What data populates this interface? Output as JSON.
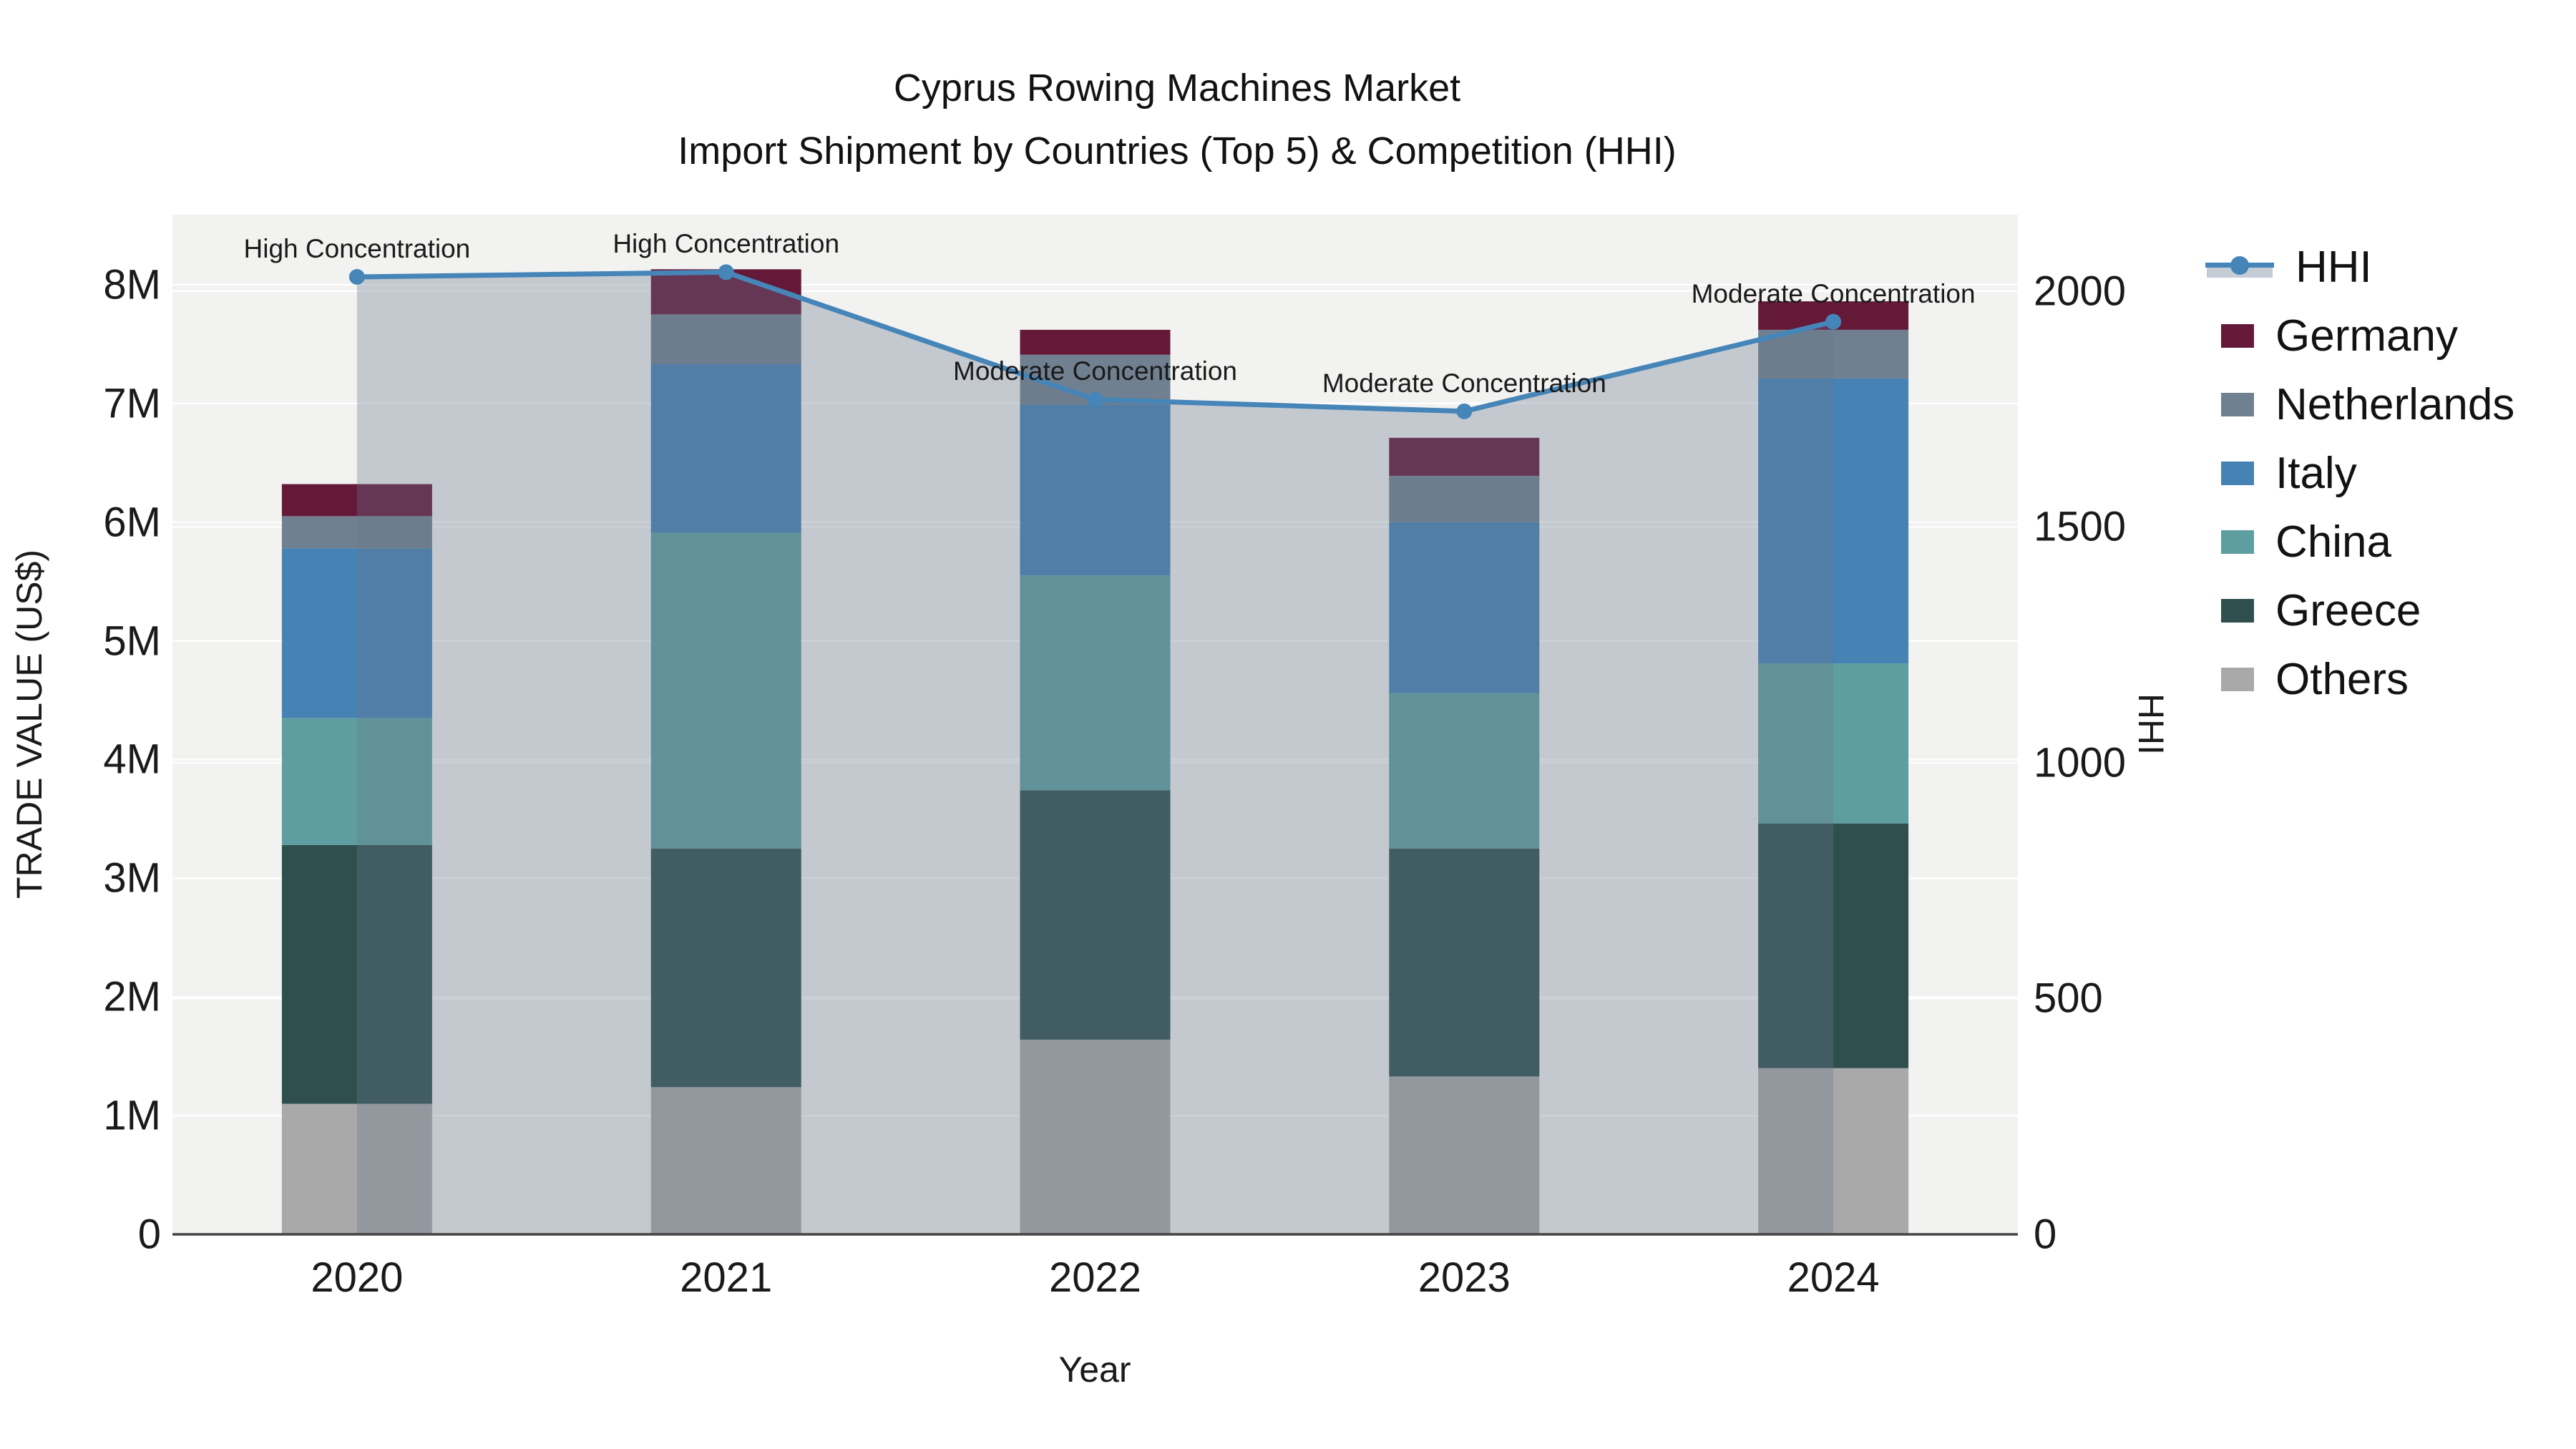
{
  "title": {
    "line1": "Cyprus Rowing Machines Market",
    "line2": "Import Shipment by Countries (Top 5) & Competition (HHI)"
  },
  "axes": {
    "x_title": "Year",
    "y_title": "TRADE VALUE (US$)",
    "y2_title": "HHI",
    "y_ticks": [
      {
        "value": 0,
        "label": "0"
      },
      {
        "value": 1,
        "label": "1M"
      },
      {
        "value": 2,
        "label": "2M"
      },
      {
        "value": 3,
        "label": "3M"
      },
      {
        "value": 4,
        "label": "4M"
      },
      {
        "value": 5,
        "label": "5M"
      },
      {
        "value": 6,
        "label": "6M"
      },
      {
        "value": 7,
        "label": "7M"
      },
      {
        "value": 8,
        "label": "8M"
      }
    ],
    "y2_ticks": [
      {
        "value": 0,
        "label": "0"
      },
      {
        "value": 500,
        "label": "500"
      },
      {
        "value": 1000,
        "label": "1000"
      },
      {
        "value": 1500,
        "label": "1500"
      },
      {
        "value": 2000,
        "label": "2000"
      }
    ]
  },
  "chart_data": {
    "type": "bar+line",
    "title": "Cyprus Rowing Machines Market — Import Shipment by Countries (Top 5) & Competition (HHI)",
    "categories": [
      "2020",
      "2021",
      "2022",
      "2023",
      "2024"
    ],
    "stacked_unit": "million US$",
    "ylim": [
      0,
      8.59
    ],
    "y2lim": [
      0,
      2162
    ],
    "grid": true,
    "legend_position": "right",
    "plot_bg": "#F2F2F1",
    "grid_color": "#FFFFFF",
    "axis_line_color": "#444444",
    "series": [
      {
        "name": "Others",
        "color": "#A9A9A9",
        "values": [
          1.1,
          1.24,
          1.64,
          1.33,
          1.4
        ]
      },
      {
        "name": "Greece",
        "color": "#2F4F4F",
        "values": [
          2.18,
          2.01,
          2.1,
          1.92,
          2.06
        ]
      },
      {
        "name": "China",
        "color": "#5F9EA0",
        "values": [
          1.07,
          2.66,
          1.81,
          1.31,
          1.35
        ]
      },
      {
        "name": "Italy",
        "color": "#4682B4",
        "values": [
          1.43,
          1.42,
          1.44,
          1.44,
          2.4
        ]
      },
      {
        "name": "Netherlands",
        "color": "#708090",
        "values": [
          0.27,
          0.42,
          0.42,
          0.39,
          0.41
        ]
      },
      {
        "name": "Germany",
        "color": "#641939",
        "values": [
          0.27,
          0.38,
          0.21,
          0.32,
          0.24
        ]
      }
    ],
    "totals": [
      6.32,
      8.13,
      7.62,
      6.71,
      7.86
    ],
    "line_series": {
      "name": "HHI",
      "axis": "y2",
      "color": "#4685B8",
      "fill_color": "rgba(104,117,141,0.33)",
      "values": [
        2030,
        2040,
        1770,
        1745,
        1935
      ]
    },
    "annotations": [
      {
        "category": "2020",
        "text": "High Concentration"
      },
      {
        "category": "2021",
        "text": "High Concentration"
      },
      {
        "category": "2022",
        "text": "Moderate Concentration"
      },
      {
        "category": "2023",
        "text": "Moderate Concentration"
      },
      {
        "category": "2024",
        "text": "Moderate Concentration"
      }
    ]
  },
  "legend": {
    "items": [
      {
        "label": "HHI",
        "type": "line",
        "color": "#4685B8"
      },
      {
        "label": "Germany",
        "type": "swatch",
        "color": "#641939"
      },
      {
        "label": "Netherlands",
        "type": "swatch",
        "color": "#708090"
      },
      {
        "label": "Italy",
        "type": "swatch",
        "color": "#4682B4"
      },
      {
        "label": "China",
        "type": "swatch",
        "color": "#5F9EA0"
      },
      {
        "label": "Greece",
        "type": "swatch",
        "color": "#2F4F4F"
      },
      {
        "label": "Others",
        "type": "swatch",
        "color": "#A9A9A9"
      }
    ]
  }
}
